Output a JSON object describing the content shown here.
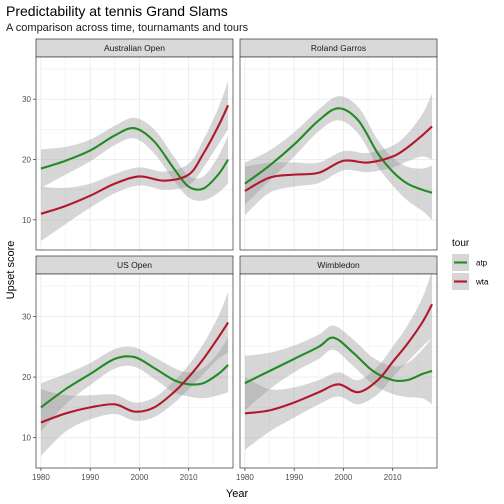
{
  "title": "Predictability at tennis Grand Slams",
  "subtitle": "A comparison across time, tournamants and tours",
  "chart_data": {
    "type": "line",
    "xlabel": "Year",
    "ylabel": "Upset score",
    "xlim": [
      1979,
      2019
    ],
    "ylim": [
      5,
      37
    ],
    "x_ticks": [
      1980,
      1990,
      2000,
      2010
    ],
    "y_ticks": [
      10,
      20,
      30
    ],
    "grid": true,
    "legend": {
      "title": "tour",
      "position": "right",
      "entries": [
        {
          "label": "atp",
          "color": "#228B22"
        },
        {
          "label": "wta",
          "color": "#B2182B"
        }
      ]
    },
    "facets": [
      {
        "name": "Australian Open",
        "series": [
          {
            "tour": "atp",
            "color": "#228B22",
            "x": [
              1980,
              1985,
              1990,
              1995,
              1999,
              2003,
              2007,
              2010,
              2013,
              2016,
              2018
            ],
            "y": [
              18.5,
              19.8,
              21.5,
              24,
              25.2,
              23,
              18.5,
              15.5,
              15.2,
              17.5,
              20
            ],
            "band_half": [
              3.2,
              2.3,
              1.8,
              1.6,
              1.7,
              2.0,
              2.0,
              1.8,
              2.0,
              3.0,
              4.0
            ]
          },
          {
            "tour": "wta",
            "color": "#B2182B",
            "x": [
              1980,
              1985,
              1990,
              1995,
              2000,
              2005,
              2010,
              2013,
              2016,
              2018
            ],
            "y": [
              11,
              12.3,
              14,
              16,
              17.2,
              16.5,
              17.5,
              21,
              25.5,
              29
            ],
            "band_half": [
              4.5,
              3.0,
              2.0,
              1.6,
              1.5,
              1.5,
              1.8,
              2.3,
              3.0,
              4.0
            ]
          }
        ]
      },
      {
        "name": "Roland Garros",
        "series": [
          {
            "tour": "atp",
            "color": "#228B22",
            "x": [
              1980,
              1985,
              1990,
              1995,
              1999,
              2003,
              2007,
              2010,
              2013,
              2016,
              2018
            ],
            "y": [
              16,
              19,
              22.5,
              26.5,
              28.5,
              26.5,
              21,
              18,
              16,
              15,
              14.5
            ],
            "band_half": [
              3.5,
              2.5,
              2.0,
              1.8,
              2.0,
              2.2,
              2.2,
              2.3,
              2.8,
              3.5,
              4.5
            ]
          },
          {
            "tour": "wta",
            "color": "#B2182B",
            "x": [
              1980,
              1985,
              1990,
              1995,
              2000,
              2005,
              2010,
              2013,
              2016,
              2018
            ],
            "y": [
              14.8,
              17,
              17.5,
              17.8,
              19.8,
              19.5,
              20.5,
              22,
              24,
              25.5
            ],
            "band_half": [
              4.0,
              2.5,
              2.0,
              1.7,
              1.6,
              1.6,
              1.8,
              2.3,
              3.5,
              5.5
            ]
          }
        ]
      },
      {
        "name": "US Open",
        "series": [
          {
            "tour": "atp",
            "color": "#228B22",
            "x": [
              1980,
              1985,
              1990,
              1995,
              1999,
              2003,
              2007,
              2010,
              2013,
              2016,
              2018
            ],
            "y": [
              15,
              18,
              20.5,
              23,
              23.3,
              21.5,
              19.5,
              18.8,
              19,
              20.5,
              22
            ],
            "band_half": [
              4.0,
              2.5,
              1.8,
              1.6,
              1.6,
              1.8,
              2.0,
              2.0,
              2.5,
              3.5,
              4.5
            ]
          },
          {
            "tour": "wta",
            "color": "#B2182B",
            "x": [
              1980,
              1985,
              1990,
              1995,
              1999,
              2003,
              2007,
              2010,
              2013,
              2016,
              2018
            ],
            "y": [
              12.5,
              14,
              15,
              15.5,
              14.3,
              15,
              17.5,
              20,
              23,
              26.5,
              29
            ],
            "band_half": [
              5.5,
              3.0,
              2.0,
              1.6,
              1.5,
              1.6,
              1.8,
              2.0,
              2.5,
              3.5,
              5.0
            ]
          }
        ]
      },
      {
        "name": "Wimbledon",
        "series": [
          {
            "tour": "atp",
            "color": "#228B22",
            "x": [
              1980,
              1985,
              1990,
              1995,
              1998,
              2002,
              2006,
              2010,
              2013,
              2016,
              2018
            ],
            "y": [
              19,
              21,
              23,
              25,
              26.5,
              24,
              21,
              19.5,
              19.5,
              20.5,
              21
            ],
            "band_half": [
              4.5,
              3.0,
              2.2,
              2.0,
              2.0,
              2.2,
              2.2,
              2.3,
              2.8,
              4.0,
              5.5
            ]
          },
          {
            "tour": "wta",
            "color": "#B2182B",
            "x": [
              1980,
              1985,
              1990,
              1995,
              1999,
              2003,
              2007,
              2010,
              2013,
              2016,
              2018
            ],
            "y": [
              14,
              14.5,
              15.8,
              17.5,
              18.8,
              17.5,
              19.5,
              22.5,
              25.5,
              29,
              32
            ],
            "band_half": [
              6.0,
              3.5,
              2.5,
              2.0,
              2.0,
              2.0,
              2.3,
              2.5,
              3.0,
              4.0,
              5.5
            ]
          }
        ]
      }
    ]
  }
}
